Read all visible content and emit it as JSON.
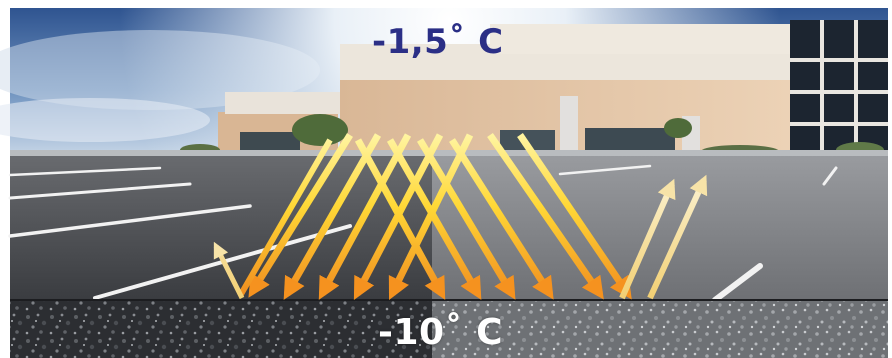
{
  "labels": {
    "air_temperature": "-1,5˚ C",
    "pavement_temperature": "-10˚ C"
  },
  "colors": {
    "air_label": "#2b2f86",
    "pavement_label": "#ffffff",
    "sky_top": "#35588f",
    "sky_bright": "#eaf1f8",
    "asphalt_dark": "#2e3034",
    "asphalt_light": "#6f7174",
    "arrow_yellow": "#ffe84a",
    "arrow_orange": "#f08a1e",
    "arrow_pale": "#f6e7b0"
  },
  "icons": [
    "reflected-sun-ray-arrow-icon"
  ]
}
